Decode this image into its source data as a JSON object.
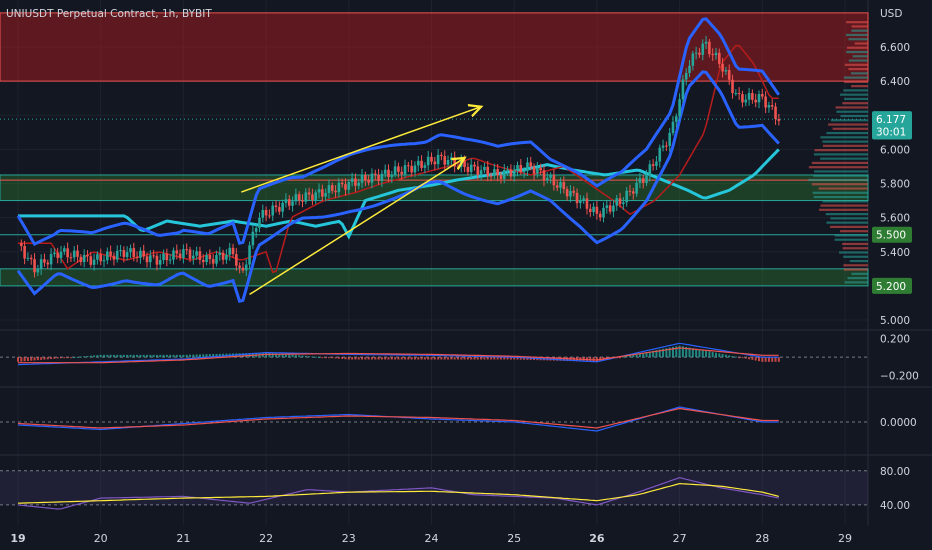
{
  "header": {
    "title": "UNIUSDT Perpetual Contract, 1h, BYBIT"
  },
  "price_axis": {
    "currency": "USD",
    "ticks": [
      "6.600",
      "6.400",
      "6.200",
      "6.000",
      "5.800",
      "5.600",
      "5.400",
      "5.200",
      "5.000"
    ],
    "tick_values": [
      6.6,
      6.4,
      6.2,
      6.0,
      5.8,
      5.6,
      5.4,
      5.2,
      5.0
    ],
    "badges": [
      {
        "text": "6.177",
        "value": 6.177,
        "color": "#26a69a"
      },
      {
        "text": "30:01",
        "value": 6.105,
        "color": "#26a69a"
      },
      {
        "text": "5.500",
        "value": 5.5,
        "color": "#2e7d32"
      },
      {
        "text": "5.200",
        "value": 5.2,
        "color": "#2e7d32"
      }
    ]
  },
  "time_axis": {
    "labels": [
      "19",
      "20",
      "21",
      "22",
      "23",
      "24",
      "25",
      "26",
      "27",
      "28",
      "29"
    ],
    "bold": [
      "19",
      "26"
    ]
  },
  "macd_axis": {
    "ticks": [
      "0.200",
      "−0.200"
    ],
    "tick_values": [
      0.2,
      -0.2
    ]
  },
  "osc_axis": {
    "ticks": [
      "0.0000"
    ],
    "tick_values": [
      0
    ]
  },
  "rsi_axis": {
    "ticks": [
      "80.00",
      "40.00"
    ],
    "tick_values": [
      80,
      40
    ]
  },
  "colors": {
    "background": "#131722",
    "up": "#26a69a",
    "down": "#ef5350",
    "bollinger": "#2962ff",
    "ma_main": "#26c6da",
    "arrow": "#ffeb3b",
    "resistance_zone": "#b71c1c",
    "support_zone": "#2e7d32"
  },
  "chart_data": {
    "type": "candlestick",
    "title": "UNIUSDT Perpetual Contract, 1h, BYBIT",
    "ylabel": "USD",
    "ylim": [
      5.0,
      6.8
    ],
    "x_range": [
      19,
      29
    ],
    "resistance_zone": [
      6.4,
      6.8
    ],
    "support_zones": [
      [
        5.7,
        5.85
      ],
      [
        5.2,
        5.3
      ]
    ],
    "levels": [
      5.5,
      5.2,
      6.177
    ],
    "last_price": 6.177,
    "bar_countdown": "30:01",
    "price_path": [
      [
        19.0,
        5.45
      ],
      [
        19.2,
        5.3
      ],
      [
        19.5,
        5.4
      ],
      [
        19.9,
        5.35
      ],
      [
        20.3,
        5.4
      ],
      [
        20.7,
        5.35
      ],
      [
        21.0,
        5.4
      ],
      [
        21.3,
        5.35
      ],
      [
        21.6,
        5.4
      ],
      [
        21.7,
        5.25
      ],
      [
        21.9,
        5.6
      ],
      [
        22.3,
        5.7
      ],
      [
        22.7,
        5.75
      ],
      [
        23.0,
        5.8
      ],
      [
        23.4,
        5.85
      ],
      [
        23.8,
        5.9
      ],
      [
        24.1,
        5.95
      ],
      [
        24.4,
        5.9
      ],
      [
        24.8,
        5.85
      ],
      [
        25.2,
        5.9
      ],
      [
        25.5,
        5.8
      ],
      [
        25.8,
        5.7
      ],
      [
        26.0,
        5.62
      ],
      [
        26.3,
        5.7
      ],
      [
        26.6,
        5.85
      ],
      [
        26.9,
        6.1
      ],
      [
        27.1,
        6.5
      ],
      [
        27.3,
        6.62
      ],
      [
        27.5,
        6.5
      ],
      [
        27.7,
        6.3
      ],
      [
        28.0,
        6.3
      ],
      [
        28.2,
        6.177
      ]
    ],
    "trend_arrows": [
      {
        "from": [
          21.8,
          5.15
        ],
        "to": [
          24.4,
          5.95
        ]
      },
      {
        "from": [
          21.7,
          5.75
        ],
        "to": [
          24.6,
          6.25
        ]
      }
    ],
    "macd": {
      "ylim": [
        -0.3,
        0.25
      ],
      "macd": [
        [
          19.0,
          -0.08
        ],
        [
          20.0,
          -0.05
        ],
        [
          21.0,
          -0.02
        ],
        [
          22.0,
          0.05
        ],
        [
          23.0,
          0.03
        ],
        [
          24.0,
          0.02
        ],
        [
          25.0,
          0.0
        ],
        [
          26.0,
          -0.05
        ],
        [
          27.0,
          0.15
        ],
        [
          28.0,
          0.0
        ]
      ],
      "signal": [
        [
          19.0,
          -0.06
        ],
        [
          20.0,
          -0.06
        ],
        [
          21.0,
          -0.03
        ],
        [
          22.0,
          0.03
        ],
        [
          23.0,
          0.04
        ],
        [
          24.0,
          0.03
        ],
        [
          25.0,
          0.01
        ],
        [
          26.0,
          -0.03
        ],
        [
          27.0,
          0.1
        ],
        [
          28.0,
          0.02
        ]
      ]
    },
    "oscillator": {
      "ylim": [
        -0.2,
        0.2
      ],
      "line_a": [
        [
          19.0,
          -0.02
        ],
        [
          20.0,
          -0.05
        ],
        [
          21.0,
          -0.01
        ],
        [
          22.0,
          0.03
        ],
        [
          23.0,
          0.05
        ],
        [
          24.0,
          0.02
        ],
        [
          25.0,
          0.0
        ],
        [
          26.0,
          -0.06
        ],
        [
          27.0,
          0.1
        ],
        [
          28.0,
          0.0
        ]
      ],
      "line_b": [
        [
          19.0,
          -0.01
        ],
        [
          20.0,
          -0.04
        ],
        [
          21.0,
          -0.02
        ],
        [
          22.0,
          0.02
        ],
        [
          23.0,
          0.04
        ],
        [
          24.0,
          0.03
        ],
        [
          25.0,
          0.01
        ],
        [
          26.0,
          -0.04
        ],
        [
          27.0,
          0.09
        ],
        [
          28.0,
          0.01
        ]
      ]
    },
    "rsi": {
      "ylim": [
        20,
        95
      ],
      "band": [
        40,
        80
      ],
      "rsi": [
        [
          19.0,
          40
        ],
        [
          19.5,
          35
        ],
        [
          20.0,
          48
        ],
        [
          21.0,
          50
        ],
        [
          21.8,
          42
        ],
        [
          22.5,
          58
        ],
        [
          23.0,
          55
        ],
        [
          24.0,
          60
        ],
        [
          24.5,
          52
        ],
        [
          25.0,
          50
        ],
        [
          25.5,
          48
        ],
        [
          26.0,
          40
        ],
        [
          26.5,
          55
        ],
        [
          27.0,
          72
        ],
        [
          27.5,
          60
        ],
        [
          28.0,
          52
        ],
        [
          28.2,
          48
        ]
      ],
      "signal": [
        [
          19.0,
          42
        ],
        [
          20.0,
          45
        ],
        [
          21.0,
          48
        ],
        [
          22.0,
          50
        ],
        [
          23.0,
          55
        ],
        [
          24.0,
          56
        ],
        [
          25.0,
          52
        ],
        [
          26.0,
          45
        ],
        [
          26.5,
          52
        ],
        [
          27.0,
          65
        ],
        [
          27.5,
          62
        ],
        [
          28.0,
          55
        ],
        [
          28.2,
          50
        ]
      ]
    }
  }
}
